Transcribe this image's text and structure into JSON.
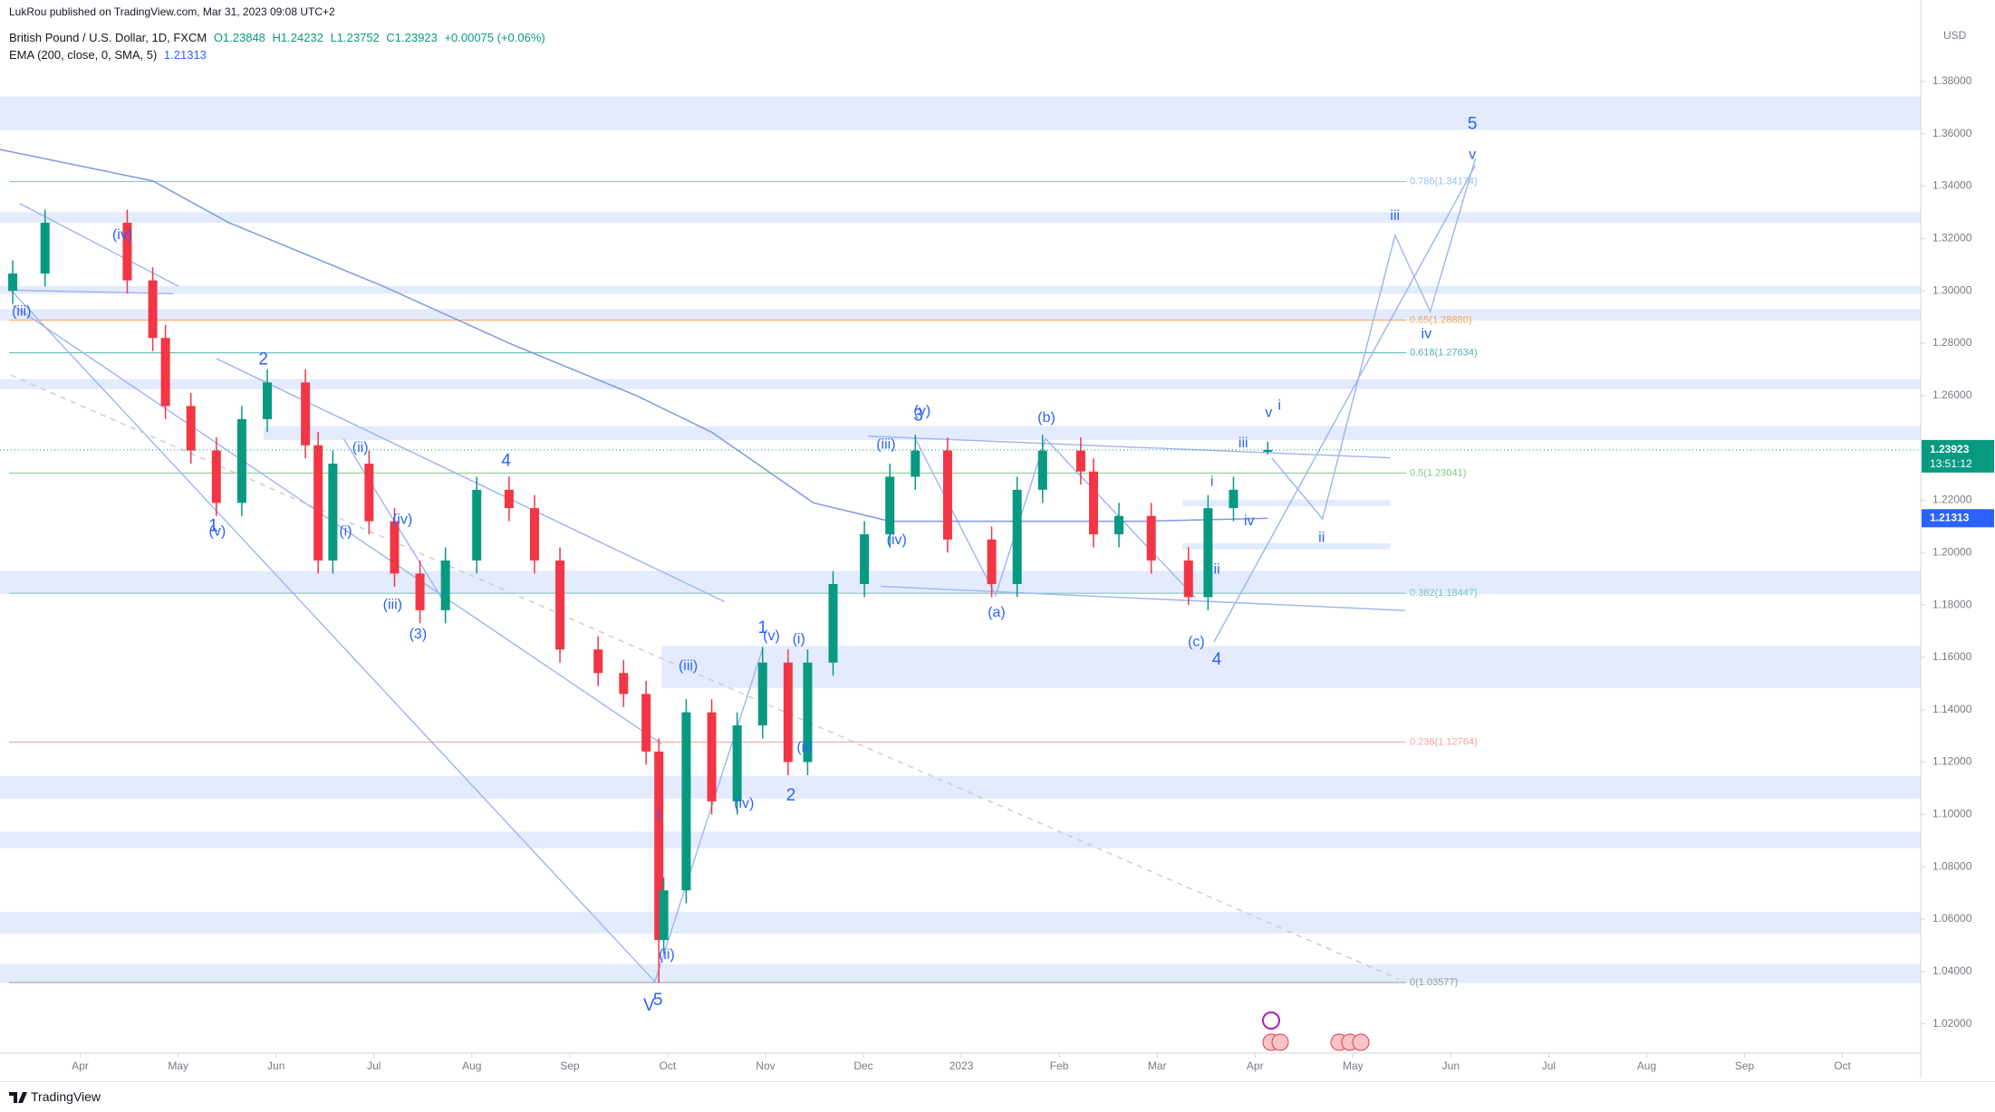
{
  "header": {
    "publisher": "LukRou published on TradingView.com, Mar 31, 2023 09:08 UTC+2",
    "symbol": "British Pound / U.S. Dollar, 1D, FXCM",
    "ohlc": [
      "O1.23848",
      "H1.24232",
      "L1.23752",
      "C1.23923",
      "+0.00075 (+0.06%)"
    ],
    "indicator": "EMA (200, close, 0, SMA, 5)",
    "indicator_value": "1.21313"
  },
  "chart_data": {
    "type": "candlestick",
    "currency": "USD",
    "up_color": "#089981",
    "down_color": "#f23645",
    "grid": false,
    "x": [
      -0.69,
      -0.36,
      0.48,
      0.74,
      0.87,
      1.13,
      1.39,
      1.65,
      1.91,
      2.3,
      2.43,
      2.58,
      2.95,
      3.21,
      3.47,
      3.73,
      4.05,
      4.38,
      4.64,
      4.9,
      5.29,
      5.55,
      5.78,
      5.91,
      5.96,
      6.19,
      6.45,
      6.71,
      6.97,
      7.23,
      7.43,
      7.69,
      8.01,
      8.27,
      8.53,
      8.86,
      9.31,
      9.57,
      9.83,
      10.22,
      10.35,
      10.61,
      10.94,
      11.32,
      11.52,
      11.78,
      12.13
    ],
    "open": [
      1.3,
      1.3066,
      1.326,
      1.304,
      1.282,
      1.256,
      1.239,
      1.219,
      1.251,
      1.265,
      1.241,
      1.197,
      1.234,
      1.212,
      1.192,
      1.178,
      1.197,
      1.224,
      1.217,
      1.197,
      1.163,
      1.154,
      1.146,
      1.124,
      1.052,
      1.071,
      1.139,
      1.105,
      1.134,
      1.158,
      1.12,
      1.158,
      1.188,
      1.207,
      1.229,
      1.239,
      1.205,
      1.188,
      1.224,
      1.239,
      1.231,
      1.207,
      1.214,
      1.197,
      1.183,
      1.217,
      1.23848
    ],
    "high": [
      1.3116,
      1.331,
      1.331,
      1.309,
      1.287,
      1.261,
      1.244,
      1.256,
      1.27,
      1.27,
      1.246,
      1.239,
      1.239,
      1.217,
      1.197,
      1.202,
      1.229,
      1.229,
      1.222,
      1.202,
      1.168,
      1.159,
      1.151,
      1.129,
      1.076,
      1.144,
      1.144,
      1.139,
      1.164,
      1.163,
      1.163,
      1.193,
      1.212,
      1.234,
      1.245,
      1.244,
      1.21,
      1.229,
      1.245,
      1.244,
      1.236,
      1.219,
      1.219,
      1.202,
      1.222,
      1.229,
      1.24232
    ],
    "low": [
      1.295,
      1.3016,
      1.299,
      1.277,
      1.251,
      1.234,
      1.214,
      1.214,
      1.246,
      1.236,
      1.192,
      1.192,
      1.207,
      1.187,
      1.173,
      1.173,
      1.192,
      1.212,
      1.192,
      1.158,
      1.149,
      1.141,
      1.119,
      1.0357,
      1.047,
      1.066,
      1.1,
      1.1,
      1.129,
      1.115,
      1.115,
      1.153,
      1.183,
      1.202,
      1.224,
      1.2,
      1.183,
      1.183,
      1.219,
      1.226,
      1.202,
      1.202,
      1.192,
      1.18,
      1.178,
      1.212,
      1.23752
    ],
    "close": [
      1.3066,
      1.326,
      1.304,
      1.282,
      1.256,
      1.239,
      1.219,
      1.251,
      1.265,
      1.241,
      1.197,
      1.234,
      1.212,
      1.192,
      1.178,
      1.197,
      1.224,
      1.217,
      1.197,
      1.163,
      1.154,
      1.146,
      1.124,
      1.052,
      1.071,
      1.139,
      1.105,
      1.134,
      1.158,
      1.12,
      1.158,
      1.188,
      1.207,
      1.229,
      1.239,
      1.205,
      1.188,
      1.224,
      1.239,
      1.231,
      1.207,
      1.214,
      1.197,
      1.183,
      1.217,
      1.224,
      1.23923
    ],
    "overlay": {
      "color": "#7e99e0",
      "x": [
        -0.82,
        0.74,
        1.52,
        3.08,
        4.38,
        5.68,
        6.45,
        7.49,
        8.27,
        9.57,
        10.87,
        12.13
      ],
      "values": [
        1.354,
        1.342,
        1.326,
        1.302,
        1.28,
        1.26,
        1.246,
        1.219,
        1.212,
        1.212,
        1.212,
        1.21313
      ]
    },
    "xlim": [
      -0.82,
      18.8
    ],
    "ylim": [
      1.0088,
      1.4111
    ],
    "xticks": [
      {
        "value": 0,
        "label": "Apr"
      },
      {
        "value": 1,
        "label": "May"
      },
      {
        "value": 2,
        "label": "Jun"
      },
      {
        "value": 3,
        "label": "Jul"
      },
      {
        "value": 4,
        "label": "Aug"
      },
      {
        "value": 5,
        "label": "Sep"
      },
      {
        "value": 6,
        "label": "Oct"
      },
      {
        "value": 7,
        "label": "Nov"
      },
      {
        "value": 8,
        "label": "Dec"
      },
      {
        "value": 9,
        "label": "2023"
      },
      {
        "value": 10,
        "label": "Feb"
      },
      {
        "value": 11,
        "label": "Mar"
      },
      {
        "value": 12,
        "label": "Apr"
      },
      {
        "value": 13,
        "label": "May"
      },
      {
        "value": 14,
        "label": "Jun"
      },
      {
        "value": 15,
        "label": "Jul"
      },
      {
        "value": 16,
        "label": "Aug"
      },
      {
        "value": 17,
        "label": "Sep"
      },
      {
        "value": 18,
        "label": "Oct"
      }
    ],
    "yticks": [
      {
        "value": 1.02,
        "label": "1.02000"
      },
      {
        "value": 1.04,
        "label": "1.04000"
      },
      {
        "value": 1.06,
        "label": "1.06000"
      },
      {
        "value": 1.08,
        "label": "1.08000"
      },
      {
        "value": 1.1,
        "label": "1.10000"
      },
      {
        "value": 1.12,
        "label": "1.12000"
      },
      {
        "value": 1.14,
        "label": "1.14000"
      },
      {
        "value": 1.16,
        "label": "1.16000"
      },
      {
        "value": 1.18,
        "label": "1.18000"
      },
      {
        "value": 1.2,
        "label": "1.20000"
      },
      {
        "value": 1.22,
        "label": "1.22000"
      },
      {
        "value": 1.24,
        "label": "1.24000"
      },
      {
        "value": 1.26,
        "label": "1.26000"
      },
      {
        "value": 1.28,
        "label": "1.28000"
      },
      {
        "value": 1.3,
        "label": "1.30000"
      },
      {
        "value": 1.32,
        "label": "1.32000"
      },
      {
        "value": 1.34,
        "label": "1.34000"
      },
      {
        "value": 1.36,
        "label": "1.36000"
      },
      {
        "value": 1.38,
        "label": "1.38000"
      }
    ],
    "fib_levels": [
      {
        "value": 1.34174,
        "label": "0.786(1.34174)",
        "color": "#90bff9"
      },
      {
        "value": 1.2888,
        "label": "0.65(1.28880)",
        "color": "#f5a35c"
      },
      {
        "value": 1.27634,
        "label": "0.618(1.27634)",
        "color": "#4db6ac"
      },
      {
        "value": 1.23041,
        "label": "0.5(1.23041)",
        "color": "#81c784"
      },
      {
        "value": 1.18447,
        "label": "0.382(1.18447)",
        "color": "#7fc4b8"
      },
      {
        "value": 1.12764,
        "label": "0.236(1.12764)",
        "color": "#f7a199"
      },
      {
        "value": 1.03577,
        "label": "0(1.03577)",
        "color": "#9598a1"
      }
    ],
    "zones": [
      {
        "low": 1.3615,
        "high": 1.3742
      },
      {
        "low": 1.326,
        "high": 1.33
      },
      {
        "low": 1.2989,
        "high": 1.3018
      },
      {
        "low": 1.2887,
        "high": 1.293
      },
      {
        "low": 1.2624,
        "high": 1.2663
      },
      {
        "low": 1.243,
        "high": 1.2483,
        "from": 1.87
      },
      {
        "low": 1.2177,
        "high": 1.2202,
        "from": 11.26,
        "to": 13.38
      },
      {
        "low": 1.2012,
        "high": 1.2036,
        "from": 11.26,
        "to": 13.38
      },
      {
        "low": 1.1842,
        "high": 1.193
      },
      {
        "low": 1.1483,
        "high": 1.1643,
        "from": 5.94
      },
      {
        "low": 1.106,
        "high": 1.1147
      },
      {
        "low": 1.0871,
        "high": 1.0934
      },
      {
        "low": 1.0545,
        "high": 1.0628
      },
      {
        "low": 1.0356,
        "high": 1.0428
      }
    ],
    "drawings": [
      {
        "x": [
          -0.62,
          1.0
        ],
        "y": [
          1.3334,
          1.3018
        ]
      },
      {
        "x": [
          -0.71,
          0.95
        ],
        "y": [
          1.3003,
          1.2989
        ]
      },
      {
        "x": [
          -0.71,
          5.87
        ],
        "y": [
          1.3003,
          1.0361
        ]
      },
      {
        "x": [
          -0.69,
          5.94
        ],
        "y": [
          1.2945,
          1.1269
        ]
      },
      {
        "x": [
          1.39,
          6.58
        ],
        "y": [
          1.2741,
          1.1813
        ]
      },
      {
        "x": [
          2.69,
          3.73
        ],
        "y": [
          1.2435,
          1.1803
        ]
      },
      {
        "x": [
          5.87,
          6.97
        ],
        "y": [
          1.0361,
          1.1633
        ]
      },
      {
        "x": [
          8.05,
          13.38
        ],
        "y": [
          1.2445,
          1.2362
        ]
      },
      {
        "x": [
          8.18,
          13.53
        ],
        "y": [
          1.1871,
          1.1779
        ]
      },
      {
        "x": [
          11.58,
          14.25
        ],
        "y": [
          1.1658,
          1.3479
        ]
      },
      {
        "x": [
          12.17,
          12.69,
          13.43,
          13.79,
          14.25
        ],
        "y": [
          1.2362,
          1.2129,
          1.3212,
          1.2921,
          1.3504
        ]
      },
      {
        "x": [
          8.53,
          9.35,
          9.86,
          11.39
        ],
        "y": [
          1.2435,
          1.1837,
          1.2435,
          1.1828
        ]
      },
      {
        "x": [
          -0.71,
          13.47
        ],
        "y": [
          1.2678,
          1.037
        ],
        "style": "dashed",
        "color": "#c8cad0"
      }
    ],
    "annotations": [
      {
        "text": "(iv)",
        "x": 0.43,
        "y": 1.3212
      },
      {
        "text": "(iii)",
        "x": -0.6,
        "y": 1.292
      },
      {
        "text": "2",
        "x": 1.87,
        "y": 1.2736
      },
      {
        "text": "(ii)",
        "x": 2.86,
        "y": 1.24
      },
      {
        "text": "(i)",
        "x": 2.71,
        "y": 1.208
      },
      {
        "text": "(iv)",
        "x": 3.29,
        "y": 1.2124
      },
      {
        "text": "(iii)",
        "x": 3.19,
        "y": 1.18
      },
      {
        "text": "(3)",
        "x": 3.45,
        "y": 1.1687
      },
      {
        "text": "4",
        "x": 4.35,
        "y": 1.2348
      },
      {
        "text": "(v)",
        "x": 1.4,
        "y": 1.208
      },
      {
        "text": "1",
        "x": 1.36,
        "y": 1.21
      },
      {
        "text": "(iii)",
        "x": 6.21,
        "y": 1.1565
      },
      {
        "text": "1",
        "x": 6.97,
        "y": 1.171
      },
      {
        "text": "(v)",
        "x": 7.06,
        "y": 1.168
      },
      {
        "text": "(i)",
        "x": 7.34,
        "y": 1.1667
      },
      {
        "text": "(ii)",
        "x": 7.4,
        "y": 1.1254
      },
      {
        "text": "2",
        "x": 7.26,
        "y": 1.107
      },
      {
        "text": "(iv)",
        "x": 6.78,
        "y": 1.104
      },
      {
        "text": "i",
        "x": 5.91,
        "y": 1.0997
      },
      {
        "text": "(ii)",
        "x": 5.99,
        "y": 1.0463
      },
      {
        "text": "V",
        "x": 5.81,
        "y": 1.0268
      },
      {
        "text": "5",
        "x": 5.9,
        "y": 1.0288
      },
      {
        "text": "(iii)",
        "x": 8.23,
        "y": 1.2411
      },
      {
        "text": "3",
        "x": 8.56,
        "y": 1.2522
      },
      {
        "text": "(v)",
        "x": 8.6,
        "y": 1.254
      },
      {
        "text": "(iv)",
        "x": 8.34,
        "y": 1.2046
      },
      {
        "text": "(a)",
        "x": 9.36,
        "y": 1.177
      },
      {
        "text": "(b)",
        "x": 9.87,
        "y": 1.2513
      },
      {
        "text": "(c)",
        "x": 11.4,
        "y": 1.1658
      },
      {
        "text": "4",
        "x": 11.61,
        "y": 1.159
      },
      {
        "text": "i",
        "x": 11.56,
        "y": 1.227
      },
      {
        "text": "ii",
        "x": 11.61,
        "y": 1.1935
      },
      {
        "text": "iii",
        "x": 11.88,
        "y": 1.2416
      },
      {
        "text": "iv",
        "x": 11.94,
        "y": 1.212
      },
      {
        "text": "v",
        "x": 12.14,
        "y": 1.2532
      },
      {
        "text": "i",
        "x": 12.25,
        "y": 1.2561
      },
      {
        "text": "ii",
        "x": 12.68,
        "y": 1.2056
      },
      {
        "text": "iii",
        "x": 13.43,
        "y": 1.3285
      },
      {
        "text": "iv",
        "x": 13.75,
        "y": 1.2833
      },
      {
        "text": "v",
        "x": 14.22,
        "y": 1.3518
      },
      {
        "text": "5",
        "x": 14.22,
        "y": 1.3635
      }
    ],
    "price_tags": [
      {
        "value": 1.23923,
        "label": "1.23923",
        "countdown": "13:51:12",
        "color": "#089981"
      },
      {
        "value": 1.21313,
        "label": "1.21313",
        "color": "#2962ff"
      }
    ]
  },
  "footer": {
    "brand": "TradingView"
  }
}
